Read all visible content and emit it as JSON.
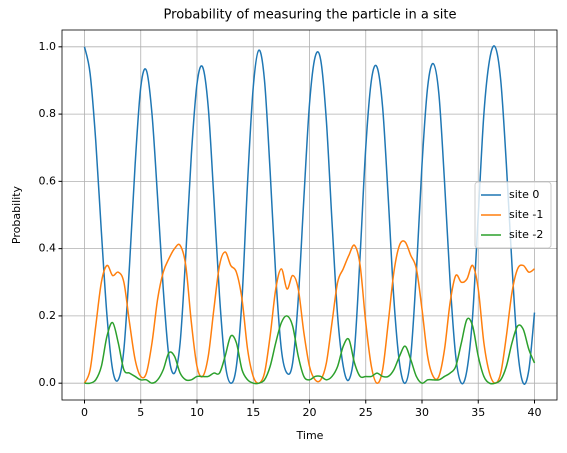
{
  "chart_data": {
    "type": "line",
    "title": "Probability of measuring the particle in a site",
    "x_label": "Time",
    "y_label": "Probability",
    "x": [
      0,
      0.5,
      1,
      1.5,
      2,
      2.5,
      3,
      3.5,
      4,
      4.5,
      5,
      5.5,
      6,
      6.5,
      7,
      7.5,
      8,
      8.5,
      9,
      9.5,
      10,
      10.5,
      11,
      11.5,
      12,
      12.5,
      13,
      13.5,
      14,
      14.5,
      15,
      15.5,
      16,
      16.5,
      17,
      17.5,
      18,
      18.5,
      19,
      19.5,
      20,
      20.5,
      21,
      21.5,
      22,
      22.5,
      23,
      23.5,
      24,
      24.5,
      25,
      25.5,
      26,
      26.5,
      27,
      27.5,
      28,
      28.5,
      29,
      29.5,
      30,
      30.5,
      31,
      31.5,
      32,
      32.5,
      33,
      33.5,
      34,
      34.5,
      35,
      35.5,
      36,
      36.5,
      37,
      37.5,
      38,
      38.5,
      39,
      39.5,
      40
    ],
    "series": [
      {
        "name": "site 0",
        "color": "#1f77b4",
        "values": [
          1.0,
          0.92,
          0.72,
          0.45,
          0.2,
          0.04,
          0.01,
          0.1,
          0.35,
          0.65,
          0.88,
          0.93,
          0.8,
          0.55,
          0.28,
          0.08,
          0.03,
          0.12,
          0.38,
          0.68,
          0.89,
          0.94,
          0.82,
          0.55,
          0.26,
          0.06,
          0.0,
          0.05,
          0.25,
          0.6,
          0.88,
          0.99,
          0.9,
          0.63,
          0.32,
          0.1,
          0.03,
          0.06,
          0.25,
          0.55,
          0.83,
          0.97,
          0.96,
          0.78,
          0.48,
          0.2,
          0.05,
          0.01,
          0.1,
          0.38,
          0.7,
          0.9,
          0.94,
          0.82,
          0.55,
          0.25,
          0.06,
          0.0,
          0.08,
          0.33,
          0.65,
          0.88,
          0.95,
          0.86,
          0.6,
          0.3,
          0.08,
          0.0,
          0.04,
          0.2,
          0.5,
          0.8,
          0.96,
          1.0,
          0.9,
          0.65,
          0.35,
          0.1,
          0.0,
          0.04,
          0.21
        ]
      },
      {
        "name": "site -1",
        "color": "#ff7f0e",
        "values": [
          0,
          0.04,
          0.17,
          0.3,
          0.35,
          0.32,
          0.33,
          0.3,
          0.18,
          0.07,
          0.02,
          0.03,
          0.12,
          0.25,
          0.33,
          0.37,
          0.4,
          0.41,
          0.35,
          0.18,
          0.05,
          0.02,
          0.08,
          0.22,
          0.35,
          0.39,
          0.35,
          0.33,
          0.25,
          0.1,
          0.02,
          0.0,
          0.03,
          0.14,
          0.28,
          0.34,
          0.28,
          0.32,
          0.28,
          0.15,
          0.05,
          0.01,
          0.01,
          0.06,
          0.18,
          0.3,
          0.34,
          0.38,
          0.41,
          0.35,
          0.18,
          0.05,
          0.0,
          0.04,
          0.18,
          0.33,
          0.41,
          0.42,
          0.38,
          0.34,
          0.22,
          0.08,
          0.02,
          0.02,
          0.1,
          0.24,
          0.32,
          0.3,
          0.31,
          0.35,
          0.28,
          0.12,
          0.03,
          0.0,
          0.03,
          0.14,
          0.27,
          0.34,
          0.35,
          0.33,
          0.34
        ]
      },
      {
        "name": "site -2",
        "color": "#2ca02c",
        "values": [
          0,
          0.0,
          0.01,
          0.05,
          0.14,
          0.18,
          0.12,
          0.04,
          0.03,
          0.02,
          0.01,
          0.01,
          0.0,
          0.01,
          0.04,
          0.09,
          0.08,
          0.03,
          0.01,
          0.01,
          0.02,
          0.02,
          0.02,
          0.03,
          0.03,
          0.08,
          0.14,
          0.12,
          0.04,
          0.01,
          0.0,
          0.0,
          0.01,
          0.05,
          0.12,
          0.18,
          0.2,
          0.17,
          0.08,
          0.02,
          0.01,
          0.02,
          0.02,
          0.01,
          0.02,
          0.05,
          0.11,
          0.13,
          0.06,
          0.02,
          0.02,
          0.02,
          0.03,
          0.02,
          0.02,
          0.04,
          0.08,
          0.11,
          0.07,
          0.02,
          0.0,
          0.01,
          0.01,
          0.01,
          0.02,
          0.03,
          0.05,
          0.12,
          0.19,
          0.17,
          0.08,
          0.02,
          0.0,
          0.0,
          0.01,
          0.05,
          0.12,
          0.17,
          0.16,
          0.1,
          0.06
        ]
      }
    ],
    "xlim": [
      -2,
      42
    ],
    "ylim": [
      -0.05,
      1.05
    ],
    "xticks": [
      0,
      5,
      10,
      15,
      20,
      25,
      30,
      35,
      40
    ],
    "yticks": [
      {
        "value": 0,
        "label": "0.0"
      },
      {
        "value": 0.2,
        "label": "0.2"
      },
      {
        "value": 0.4,
        "label": "0.4"
      },
      {
        "value": 0.6,
        "label": "0.6"
      },
      {
        "value": 0.8,
        "label": "0.8"
      },
      {
        "value": 1.0,
        "label": "1.0"
      }
    ],
    "grid": true,
    "legend": "center right"
  }
}
